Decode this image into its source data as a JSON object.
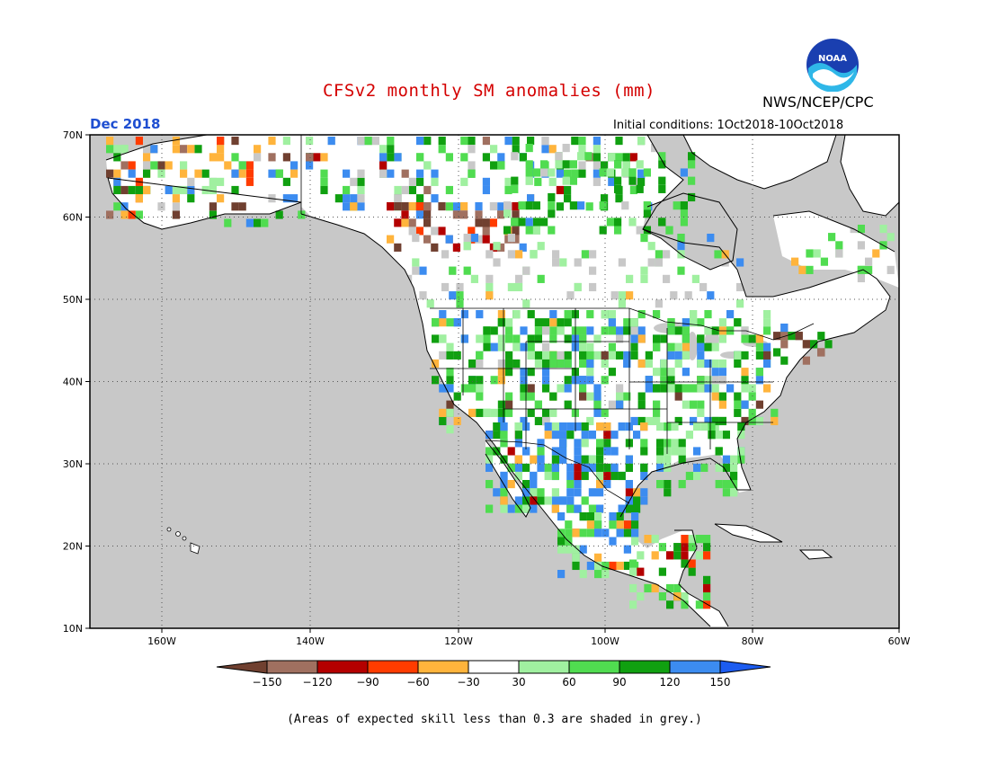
{
  "header": {
    "title": "CFSv2 monthly SM anomalies (mm)",
    "agency": "NWS/NCEP/CPC",
    "month": "Dec 2018",
    "initial_conditions": "Initial conditions: 1Oct2018-10Oct2018",
    "logo_text": "NOAA"
  },
  "map": {
    "lon_labels": [
      "160W",
      "140W",
      "120W",
      "100W",
      "80W",
      "60W"
    ],
    "lat_labels": [
      "70N",
      "60N",
      "50N",
      "40N",
      "30N",
      "20N",
      "10N"
    ],
    "ocean_color": "#c8c8c8",
    "land_color": "#ffffff"
  },
  "colorbar": {
    "tick_labels": [
      "-150",
      "-120",
      "-90",
      "-60",
      "-30",
      "30",
      "60",
      "90",
      "120",
      "150"
    ],
    "colors": [
      "#704030",
      "#a07060",
      "#b40000",
      "#ff3c00",
      "#ffb43c",
      "#ffffff",
      "#a0f0a0",
      "#50dc50",
      "#10a010",
      "#3c8cf0",
      "#1c5cf0"
    ]
  },
  "footnote": "(Areas of expected skill less than 0.3 are shaded in grey.)"
}
